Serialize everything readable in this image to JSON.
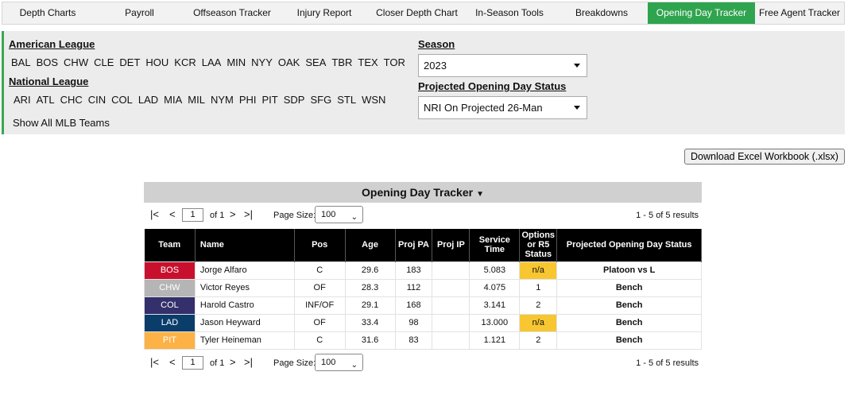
{
  "nav": [
    {
      "label": "Depth Charts",
      "active": false
    },
    {
      "label": "Payroll",
      "active": false
    },
    {
      "label": "Offseason Tracker",
      "active": false
    },
    {
      "label": "Injury Report",
      "active": false
    },
    {
      "label": "Closer Depth Chart",
      "active": false
    },
    {
      "label": "In-Season Tools",
      "active": false
    },
    {
      "label": "Breakdowns",
      "active": false
    },
    {
      "label": "Opening Day Tracker",
      "active": true
    },
    {
      "label": "Free Agent Tracker",
      "active": false
    }
  ],
  "filters": {
    "al_title": "American League",
    "al_teams": [
      "BAL",
      "BOS",
      "CHW",
      "CLE",
      "DET",
      "HOU",
      "KCR",
      "LAA",
      "MIN",
      "NYY",
      "OAK",
      "SEA",
      "TBR",
      "TEX",
      "TOR"
    ],
    "nl_title": "National League",
    "nl_teams": [
      "ARI",
      "ATL",
      "CHC",
      "CIN",
      "COL",
      "LAD",
      "MIA",
      "MIL",
      "NYM",
      "PHI",
      "PIT",
      "SDP",
      "SFG",
      "STL",
      "WSN"
    ],
    "show_all": "Show All MLB Teams",
    "season_title": "Season",
    "season_value": "2023",
    "status_title": "Projected Opening Day Status",
    "status_value": "NRI On Projected 26-Man"
  },
  "download_label": "Download Excel Workbook (.xlsx)",
  "table": {
    "title": "Opening Day Tracker",
    "pager": {
      "page": "1",
      "of_label": "of 1",
      "page_size_label": "Page Size:",
      "page_size": "100",
      "results": "1 - 5 of 5 results"
    },
    "columns": [
      "Team",
      "Name",
      "Pos",
      "Age",
      "Proj PA",
      "Proj IP",
      "Service Time",
      "Options or R5 Status",
      "Projected Opening Day Status"
    ],
    "rows": [
      {
        "team": "BOS",
        "color": "#c8102e",
        "name": "Jorge Alfaro",
        "pos": "C",
        "age": "29.6",
        "pa": "183",
        "ip": "",
        "service": "5.083",
        "options": "n/a",
        "status": "Platoon vs L"
      },
      {
        "team": "CHW",
        "color": "#b5b5b5",
        "name": "Victor Reyes",
        "pos": "OF",
        "age": "28.3",
        "pa": "112",
        "ip": "",
        "service": "4.075",
        "options": "1",
        "status": "Bench"
      },
      {
        "team": "COL",
        "color": "#33306b",
        "name": "Harold Castro",
        "pos": "INF/OF",
        "age": "29.1",
        "pa": "168",
        "ip": "",
        "service": "3.141",
        "options": "2",
        "status": "Bench"
      },
      {
        "team": "LAD",
        "color": "#0b3d6b",
        "name": "Jason Heyward",
        "pos": "OF",
        "age": "33.4",
        "pa": "98",
        "ip": "",
        "service": "13.000",
        "options": "n/a",
        "status": "Bench"
      },
      {
        "team": "PIT",
        "color": "#fdb245",
        "name": "Tyler Heineman",
        "pos": "C",
        "age": "31.6",
        "pa": "83",
        "ip": "",
        "service": "1.121",
        "options": "2",
        "status": "Bench"
      }
    ]
  }
}
